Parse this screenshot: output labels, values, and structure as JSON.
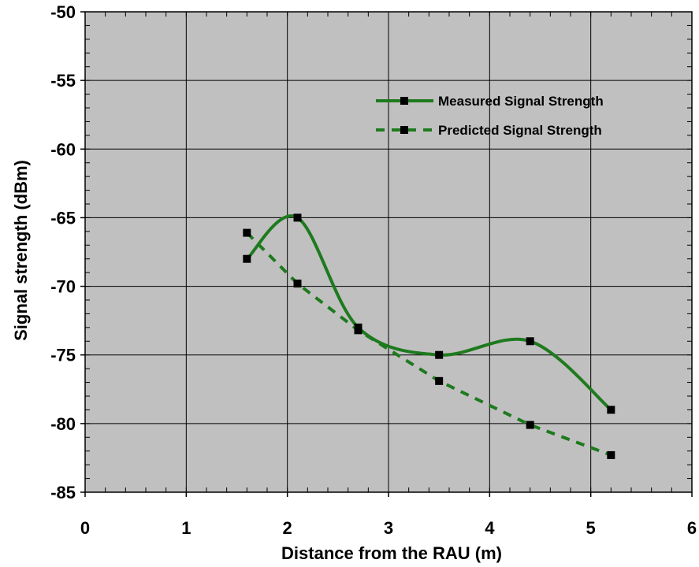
{
  "chart_data": {
    "type": "line",
    "title": "",
    "xlabel": "Distance from the RAU (m)",
    "ylabel": "Signal strength (dBm)",
    "xlim": [
      0,
      6
    ],
    "ylim": [
      -85,
      -50
    ],
    "x_ticks": [
      0,
      1,
      2,
      3,
      4,
      5,
      6
    ],
    "y_ticks": [
      -50,
      -55,
      -60,
      -65,
      -70,
      -75,
      -80,
      -85
    ],
    "x_tick_labels": [
      "0",
      "1",
      "2",
      "3",
      "4",
      "5",
      "6"
    ],
    "y_tick_labels": [
      "-50",
      "-55",
      "-60",
      "-65",
      "-70",
      "-75",
      "-80",
      "-85"
    ],
    "grid": true,
    "plot_background": "#c0c0c0",
    "legend_position": "top-right",
    "series": [
      {
        "name": "Measured Signal Strength",
        "style": "solid",
        "smooth": true,
        "color": "#1e7a1e",
        "marker_color": "#000000",
        "x": [
          1.6,
          2.1,
          2.7,
          3.5,
          4.4,
          5.2
        ],
        "y": [
          -68,
          -65,
          -73,
          -75,
          -74,
          -79
        ]
      },
      {
        "name": "Predicted Signal Strength",
        "style": "dashed",
        "smooth": false,
        "color": "#1e7a1e",
        "marker_color": "#000000",
        "x": [
          1.6,
          2.1,
          2.7,
          3.5,
          4.4,
          5.2
        ],
        "y": [
          -66.1,
          -69.8,
          -73.2,
          -76.9,
          -80.1,
          -82.3
        ]
      }
    ]
  }
}
